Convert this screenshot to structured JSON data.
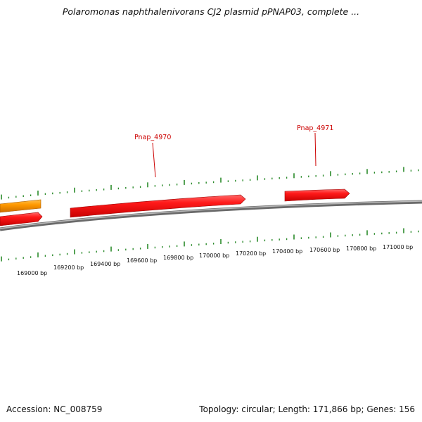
{
  "title": "Polaromonas naphthalenivorans CJ2 plasmid pPNAP03, complete ...",
  "footer": {
    "accession": "Accession: NC_008759",
    "summary": "Topology: circular; Length: 171,866 bp; Genes: 156"
  },
  "colors": {
    "background": "#ffffff",
    "backbone": "#888888",
    "gene_forward": "#ee1111",
    "gene_other": "#ff9900",
    "tick": "#2a8a2a",
    "label": "#cc0000"
  },
  "ticks": {
    "labels": [
      "169000 bp",
      "169200 bp",
      "169400 bp",
      "169600 bp",
      "169800 bp",
      "170000 bp",
      "170200 bp",
      "170400 bp",
      "170600 bp",
      "170800 bp",
      "171000 bp"
    ]
  },
  "genes": [
    {
      "name": "",
      "color": "orange",
      "strand": "+"
    },
    {
      "name": "",
      "color": "red",
      "strand": "+"
    },
    {
      "name": "Pnap_4970",
      "color": "red",
      "strand": "+"
    },
    {
      "name": "Pnap_4971",
      "color": "red",
      "strand": "+"
    }
  ]
}
